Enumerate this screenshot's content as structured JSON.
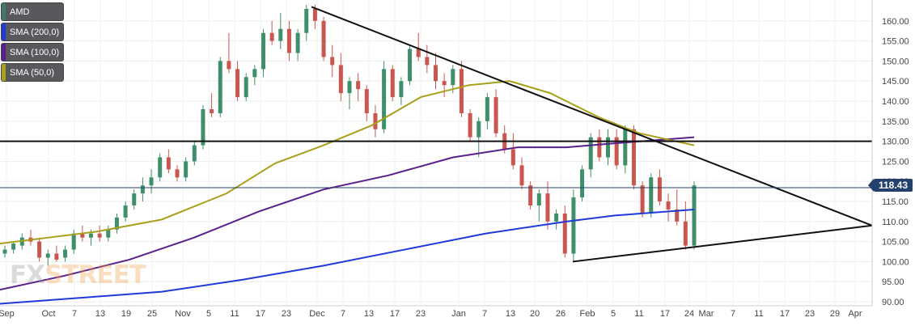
{
  "chart_data": {
    "type": "candlestick",
    "symbol": "AMD",
    "current_price": "118.43",
    "y_ticks": [
      "160.00",
      "155.00",
      "150.00",
      "145.00",
      "140.00",
      "135.00",
      "130.00",
      "125.00",
      "120.00",
      "115.00",
      "110.00",
      "105.00",
      "100.00",
      "95.00",
      "90.00"
    ],
    "ylim": [
      89,
      164
    ],
    "x_ticks": [
      "Sep",
      "Oct",
      "7",
      "13",
      "19",
      "25",
      "Nov",
      "5",
      "11",
      "17",
      "23",
      "Dec",
      "7",
      "13",
      "17",
      "23",
      "Jan",
      "7",
      "13",
      "20",
      "26",
      "Feb",
      "5",
      "11",
      "17",
      "24",
      "Mar",
      "7",
      "11",
      "17",
      "23",
      "29",
      "Apr"
    ],
    "grid": true,
    "legend_position": "top-left",
    "indicators": [
      {
        "name": "SMA (200,0)",
        "color": "#1f3ad6"
      },
      {
        "name": "SMA (100,0)",
        "color": "#5a1f8a"
      },
      {
        "name": "SMA (50,0)",
        "color": "#a8a01b"
      }
    ],
    "candles": [
      [
        102,
        104,
        101,
        103
      ],
      [
        103,
        105,
        102,
        104.5
      ],
      [
        104,
        107,
        103,
        106
      ],
      [
        106,
        108,
        104,
        105
      ],
      [
        105,
        106,
        100,
        101
      ],
      [
        101,
        103,
        99,
        102
      ],
      [
        102,
        104,
        100,
        100.5
      ],
      [
        101,
        104,
        100,
        103
      ],
      [
        103,
        108,
        102,
        107
      ],
      [
        107,
        109,
        105,
        106
      ],
      [
        106,
        108,
        104,
        107
      ],
      [
        107,
        109,
        105,
        106
      ],
      [
        106,
        109,
        105,
        108
      ],
      [
        108,
        112,
        107,
        111
      ],
      [
        111,
        115,
        110,
        114
      ],
      [
        114,
        118,
        113,
        117
      ],
      [
        117,
        121,
        115,
        119
      ],
      [
        119,
        123,
        117,
        121
      ],
      [
        121,
        127,
        120,
        126
      ],
      [
        126,
        128,
        122,
        123
      ],
      [
        123,
        124,
        120,
        121
      ],
      [
        121,
        126,
        120,
        125
      ],
      [
        125,
        130,
        124,
        129
      ],
      [
        129,
        139,
        128,
        138
      ],
      [
        138,
        142,
        136,
        137
      ],
      [
        137,
        151,
        136,
        150
      ],
      [
        150,
        157,
        147,
        148
      ],
      [
        148,
        150,
        140,
        141
      ],
      [
        141,
        147,
        140,
        146
      ],
      [
        146,
        149,
        144,
        148
      ],
      [
        148,
        158,
        146,
        157
      ],
      [
        157,
        160,
        154,
        155
      ],
      [
        155,
        162,
        153,
        158
      ],
      [
        158,
        160,
        150,
        152
      ],
      [
        152,
        158,
        150,
        157
      ],
      [
        157,
        164,
        155,
        163
      ],
      [
        163,
        164,
        158,
        160
      ],
      [
        160,
        161,
        150,
        151
      ],
      [
        151,
        154,
        146,
        149
      ],
      [
        149,
        152,
        140,
        142
      ],
      [
        142,
        146,
        138,
        145
      ],
      [
        145,
        147,
        140,
        143
      ],
      [
        143,
        144,
        135,
        137
      ],
      [
        137,
        139,
        131,
        133
      ],
      [
        133,
        150,
        132,
        148
      ],
      [
        148,
        149,
        140,
        141
      ],
      [
        141,
        146,
        139,
        145
      ],
      [
        145,
        154,
        144,
        153
      ],
      [
        153,
        157,
        150,
        151
      ],
      [
        151,
        154,
        147,
        149
      ],
      [
        149,
        152,
        143,
        145
      ],
      [
        145,
        147,
        141,
        144
      ],
      [
        144,
        149,
        142,
        148
      ],
      [
        148,
        150,
        136,
        137
      ],
      [
        137,
        138,
        130,
        131
      ],
      [
        131,
        136,
        126,
        135
      ],
      [
        135,
        142,
        133,
        141
      ],
      [
        141,
        143,
        131,
        132
      ],
      [
        132,
        134,
        127,
        128
      ],
      [
        128,
        132,
        123,
        124
      ],
      [
        124,
        126,
        118,
        119
      ],
      [
        119,
        120,
        113,
        114
      ],
      [
        114,
        118,
        110,
        117
      ],
      [
        117,
        120,
        108,
        110
      ],
      [
        110,
        113,
        108,
        112
      ],
      [
        112,
        114,
        101,
        102
      ],
      [
        102,
        118,
        100,
        116
      ],
      [
        116,
        124,
        115,
        123
      ],
      [
        123,
        132,
        121,
        131
      ],
      [
        131,
        133,
        125,
        126
      ],
      [
        126,
        133,
        124,
        131
      ],
      [
        131,
        133,
        123,
        124
      ],
      [
        124,
        134,
        122,
        133
      ],
      [
        133,
        134,
        118,
        119
      ],
      [
        119,
        120,
        111,
        112
      ],
      [
        112,
        122,
        111,
        121
      ],
      [
        121,
        123,
        114,
        115
      ],
      [
        115,
        117,
        110,
        113
      ],
      [
        113,
        118,
        109,
        110
      ],
      [
        110,
        115,
        103,
        104
      ],
      [
        104,
        120,
        103,
        119
      ]
    ]
  }
}
